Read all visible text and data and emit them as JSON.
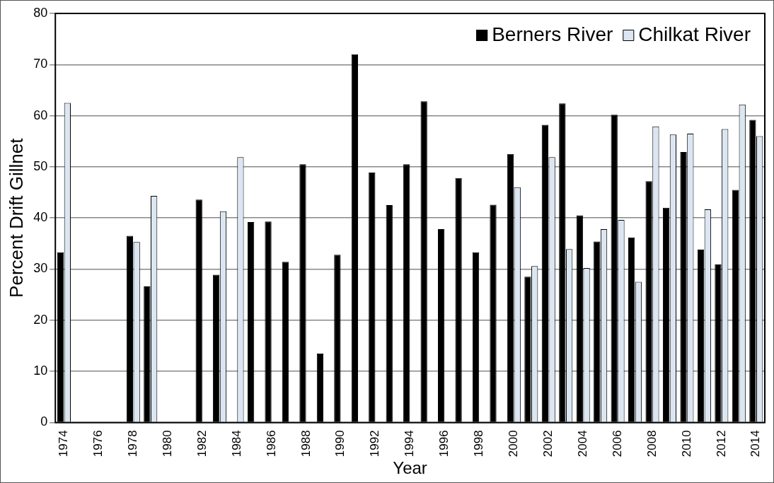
{
  "chart_data": {
    "type": "bar",
    "xlabel": "Year",
    "ylabel": "Percent Drift Gillnet",
    "categories": [
      "1974",
      null,
      "1976",
      null,
      "1978",
      null,
      "1980",
      null,
      "1982",
      null,
      "1984",
      null,
      "1986",
      null,
      "1988",
      null,
      "1990",
      null,
      "1992",
      null,
      "1994",
      null,
      "1996",
      null,
      "1998",
      null,
      "2000",
      null,
      "2002",
      null,
      "2004",
      null,
      "2006",
      null,
      "2008",
      null,
      "2010",
      null,
      "2012",
      null,
      "2014"
    ],
    "series": [
      {
        "name": "Berners River",
        "color": "#000000",
        "values": [
          33.3,
          null,
          null,
          null,
          36.5,
          26.6,
          null,
          null,
          43.6,
          28.9,
          null,
          39.2,
          39.3,
          31.4,
          50.5,
          13.5,
          32.8,
          72,
          48.9,
          42.5,
          50.5,
          62.8,
          37.8,
          47.8,
          33.3,
          42.6,
          52.5,
          28.5,
          58.2,
          62.4,
          40.5,
          35.4,
          60.2,
          36.2,
          47.2,
          42,
          52.9,
          33.8,
          30.9,
          45.5,
          59.2
        ]
      },
      {
        "name": "Chilkat River",
        "color": "#dce6f2",
        "values": [
          62.5,
          null,
          null,
          null,
          35.3,
          44.3,
          null,
          null,
          null,
          41.3,
          51.9,
          null,
          null,
          null,
          null,
          null,
          null,
          null,
          null,
          null,
          null,
          null,
          null,
          null,
          null,
          null,
          46,
          30.6,
          51.9,
          33.9,
          30.2,
          37.8,
          39.6,
          27.5,
          57.9,
          56.3,
          56.5,
          41.7,
          57.4,
          62.2,
          56
        ]
      }
    ],
    "ylim": [
      0,
      80
    ],
    "yticks": [
      0,
      10,
      20,
      30,
      40,
      50,
      60,
      70,
      80
    ],
    "grid": "y",
    "legend": "top right"
  }
}
